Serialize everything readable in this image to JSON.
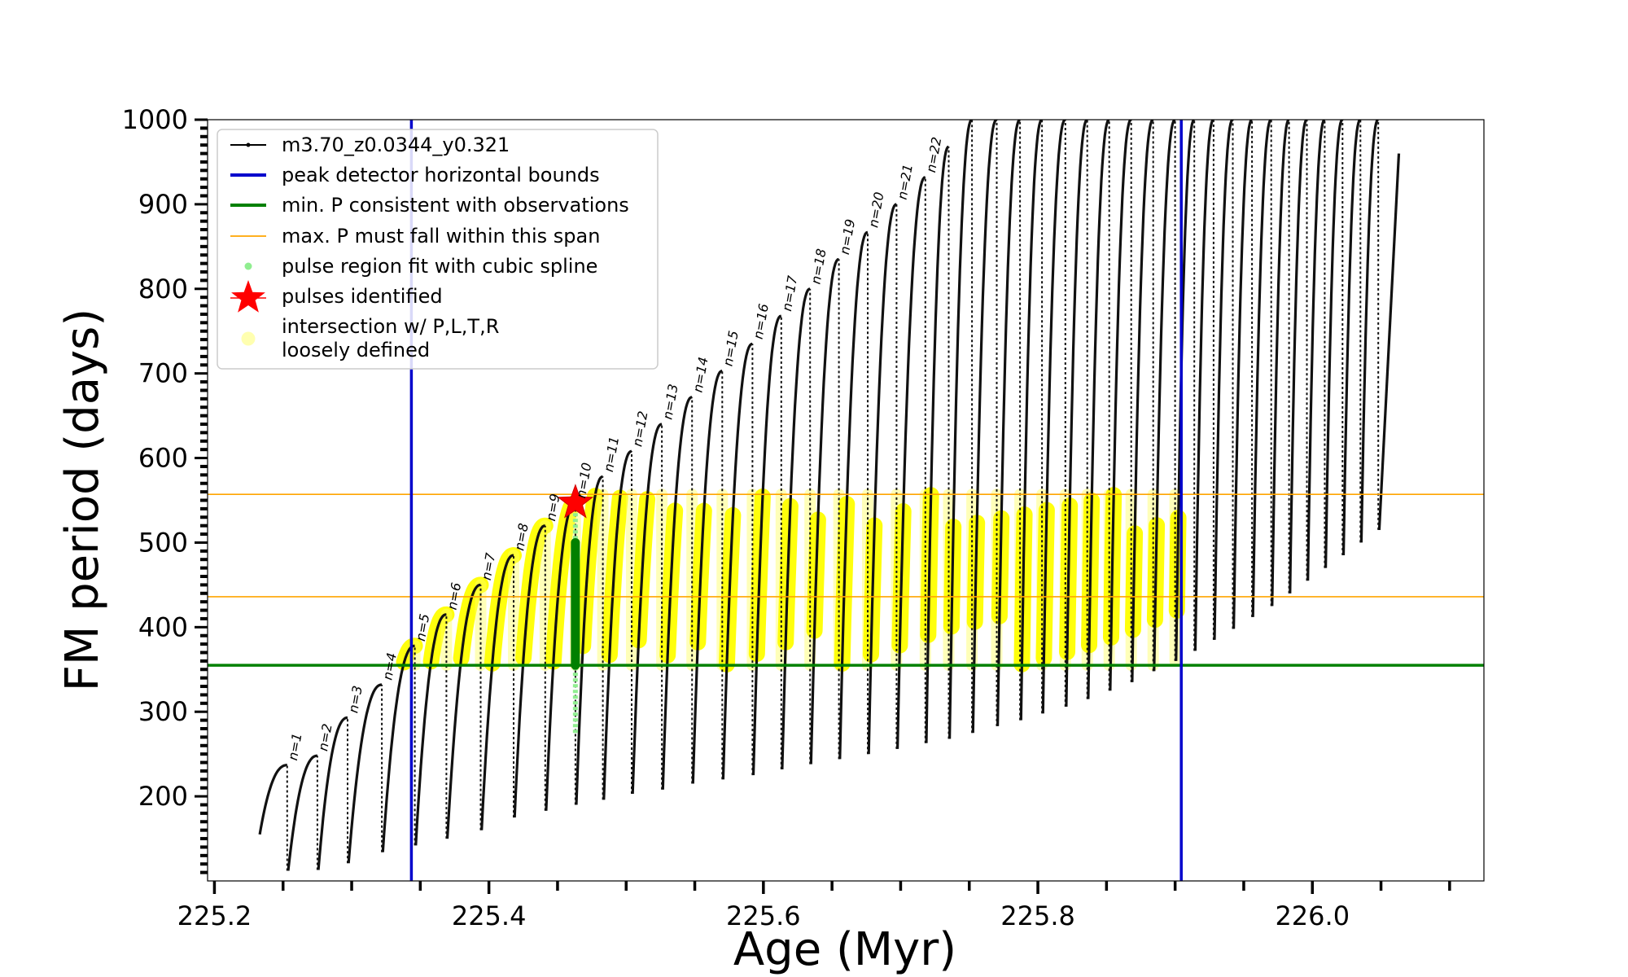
{
  "chart_data": {
    "type": "line",
    "title": "",
    "xlabel": "Age (Myr)",
    "ylabel": "FM period (days)",
    "xlim": [
      225.195,
      226.125
    ],
    "ylim": [
      100,
      1000
    ],
    "grid": false,
    "legend_position": "top-left",
    "x_ticks": [
      "225.2",
      "225.4",
      "225.6",
      "225.8",
      "226.0"
    ],
    "y_ticks": [
      "200",
      "300",
      "400",
      "500",
      "600",
      "700",
      "800",
      "900",
      "1000"
    ],
    "legend": [
      {
        "label": "m3.70_z0.0344_y0.321",
        "style": "black-line-dots",
        "color": "#000000"
      },
      {
        "label": "peak detector horizontal bounds",
        "style": "line",
        "color": "#0000cc"
      },
      {
        "label": "min. P consistent with observations",
        "style": "line",
        "color": "#008000"
      },
      {
        "label": "max. P must fall within this span",
        "style": "thin-line",
        "color": "#ffa500"
      },
      {
        "label": "pulse region fit with cubic spline",
        "style": "dot",
        "color": "#90ee90"
      },
      {
        "label": "pulses identified",
        "style": "star",
        "color": "#ff0000"
      },
      {
        "label": "intersection w/ P,L,T,R",
        "style": "yellow-circle",
        "color": "#ffff00"
      },
      {
        "label": "loosely defined",
        "style": "none",
        "color": "#ffff00"
      }
    ],
    "vertical_lines": [
      {
        "x": 225.3435,
        "color": "#0000cc",
        "role": "peak detector horizontal bounds"
      },
      {
        "x": 225.9045,
        "color": "#0000cc",
        "role": "peak detector horizontal bounds"
      }
    ],
    "horizontal_lines": [
      {
        "y": 355,
        "color": "#008000",
        "role": "min. P consistent with observations"
      },
      {
        "y": 436,
        "color": "#ffa500",
        "role": "max. P span lower"
      },
      {
        "y": 557,
        "color": "#ffa500",
        "role": "max. P span upper"
      }
    ],
    "pulse_labels": [
      "n=1",
      "n=2",
      "n=3",
      "n=4",
      "n=5",
      "n=6",
      "n=7",
      "n=8",
      "n=9",
      "n=10",
      "n=11",
      "n=12",
      "n=13",
      "n=14",
      "n=15",
      "n=16",
      "n=17",
      "n=18",
      "n=19",
      "n=20",
      "n=21",
      "n=22"
    ],
    "pulses": [
      {
        "age": 225.253,
        "min": 112,
        "max": 237
      },
      {
        "age": 225.275,
        "min": 113,
        "max": 248
      },
      {
        "age": 225.297,
        "min": 121,
        "max": 293
      },
      {
        "age": 225.322,
        "min": 134,
        "max": 332
      },
      {
        "age": 225.346,
        "min": 142,
        "max": 378
      },
      {
        "age": 225.369,
        "min": 150,
        "max": 415
      },
      {
        "age": 225.394,
        "min": 160,
        "max": 450
      },
      {
        "age": 225.418,
        "min": 175,
        "max": 485
      },
      {
        "age": 225.441,
        "min": 183,
        "max": 520
      },
      {
        "age": 225.463,
        "min": 190,
        "max": 547
      },
      {
        "age": 225.483,
        "min": 196,
        "max": 578
      },
      {
        "age": 225.504,
        "min": 203,
        "max": 608
      },
      {
        "age": 225.526,
        "min": 208,
        "max": 640
      },
      {
        "age": 225.548,
        "min": 215,
        "max": 672
      },
      {
        "age": 225.57,
        "min": 220,
        "max": 703
      },
      {
        "age": 225.592,
        "min": 225,
        "max": 735
      },
      {
        "age": 225.613,
        "min": 232,
        "max": 768
      },
      {
        "age": 225.634,
        "min": 238,
        "max": 800
      },
      {
        "age": 225.655,
        "min": 244,
        "max": 835
      },
      {
        "age": 225.676,
        "min": 250,
        "max": 867
      },
      {
        "age": 225.697,
        "min": 256,
        "max": 900
      },
      {
        "age": 225.718,
        "min": 263,
        "max": 932
      },
      {
        "age": 225.735,
        "min": 268,
        "max": 968
      },
      {
        "age": 225.752,
        "min": 275,
        "max": 1000
      },
      {
        "age": 225.77,
        "min": 283,
        "max": 1000
      },
      {
        "age": 225.787,
        "min": 290,
        "max": 1000
      },
      {
        "age": 225.803,
        "min": 298,
        "max": 1000
      },
      {
        "age": 225.82,
        "min": 306,
        "max": 1000
      },
      {
        "age": 225.836,
        "min": 315,
        "max": 1000
      },
      {
        "age": 225.852,
        "min": 325,
        "max": 1000
      },
      {
        "age": 225.868,
        "min": 335,
        "max": 1000
      },
      {
        "age": 225.884,
        "min": 348,
        "max": 1000
      },
      {
        "age": 225.9,
        "min": 360,
        "max": 1000
      },
      {
        "age": 225.914,
        "min": 372,
        "max": 1000
      },
      {
        "age": 225.928,
        "min": 385,
        "max": 1000
      },
      {
        "age": 225.942,
        "min": 398,
        "max": 1000
      },
      {
        "age": 225.956,
        "min": 412,
        "max": 1000
      },
      {
        "age": 225.97,
        "min": 425,
        "max": 1000
      },
      {
        "age": 225.983,
        "min": 440,
        "max": 1000
      },
      {
        "age": 225.996,
        "min": 455,
        "max": 1000
      },
      {
        "age": 226.009,
        "min": 470,
        "max": 1000
      },
      {
        "age": 226.022,
        "min": 485,
        "max": 1000
      },
      {
        "age": 226.035,
        "min": 500,
        "max": 1000
      },
      {
        "age": 226.048,
        "min": 515,
        "max": 1000
      }
    ],
    "series": [
      {
        "name": "m3.70_z0.0344_y0.321",
        "start": {
          "age": 225.233,
          "period": 155
        }
      }
    ],
    "pulses_identified": [
      {
        "x": 225.463,
        "y": 547
      }
    ],
    "spline_fit_region": {
      "x": 225.463,
      "y_range": [
        275,
        545
      ]
    },
    "green_highlight": {
      "x": 225.463,
      "y_range": [
        355,
        500
      ]
    }
  }
}
